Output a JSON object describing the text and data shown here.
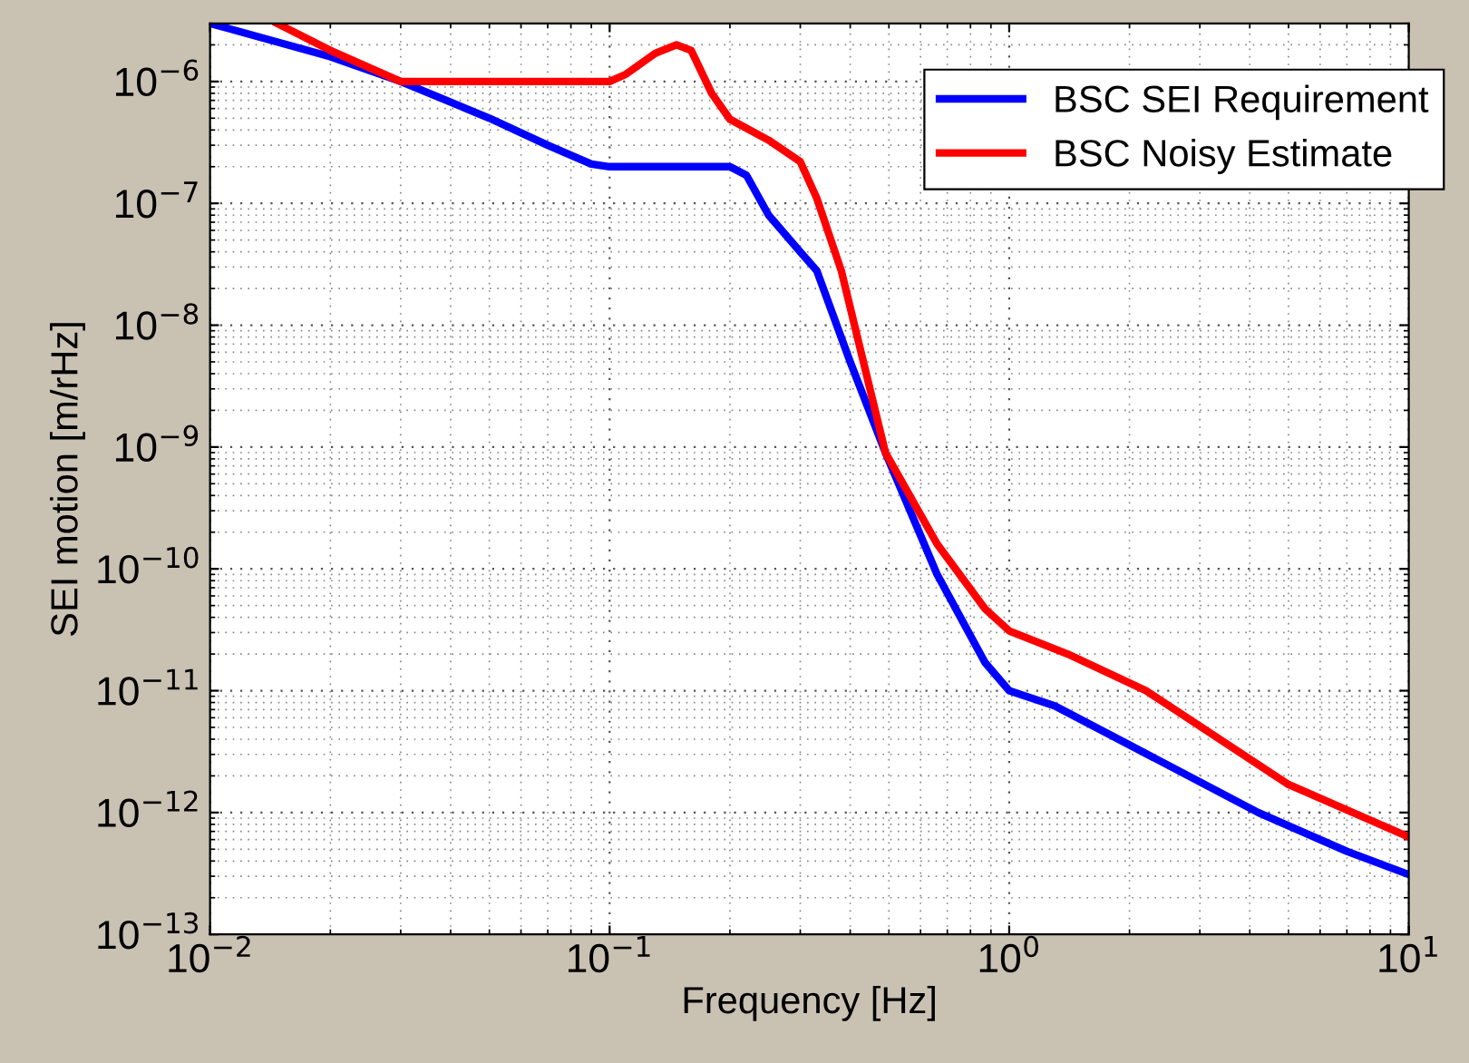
{
  "chart_data": {
    "type": "line",
    "xlabel": "Frequency [Hz]",
    "ylabel": "SEI motion [m/rHz]",
    "log": "xy",
    "grid": true,
    "legend": "top right",
    "line_style": "solid",
    "xlim": [
      0.01,
      10
    ],
    "ylim": [
      1e-13,
      3e-06
    ],
    "xticks": [
      {
        "value": 0.01,
        "label": "10$^{−2}$"
      },
      {
        "value": 0.1,
        "label": "10$^{−1}$"
      },
      {
        "value": 1,
        "label": "10$^{0}$"
      },
      {
        "value": 10,
        "label": "10$^{1}$"
      }
    ],
    "yticks": [
      {
        "value": 1e-13,
        "label": "10$^{−13}$"
      },
      {
        "value": 1e-12,
        "label": "10$^{−12}$"
      },
      {
        "value": 1e-11,
        "label": "10$^{−11}$"
      },
      {
        "value": 1e-10,
        "label": "10$^{−10}$"
      },
      {
        "value": 1e-09,
        "label": "10$^{−9}$"
      },
      {
        "value": 1e-08,
        "label": "10$^{−8}$"
      },
      {
        "value": 1e-07,
        "label": "10$^{−7}$"
      },
      {
        "value": 1e-06,
        "label": "10$^{−6}$"
      }
    ],
    "series": [
      {
        "name": "BSC SEI Requirement",
        "color": "#0000ff",
        "x": [
          0.01,
          0.02,
          0.03,
          0.05,
          0.07,
          0.09,
          0.1,
          0.15,
          0.2,
          0.22,
          0.25,
          0.3,
          0.33,
          0.4,
          0.49,
          0.66,
          0.87,
          1.0,
          1.3,
          2.1,
          4.2,
          7,
          10
        ],
        "values": [
          3e-06,
          1.6e-06,
          1e-06,
          5e-07,
          3e-07,
          2.1e-07,
          2e-07,
          2e-07,
          2e-07,
          1.7e-07,
          8e-08,
          4e-08,
          2.8e-08,
          5e-09,
          9e-10,
          9e-11,
          1.7e-11,
          1e-11,
          7.5e-12,
          3.3e-12,
          1e-12,
          4.8e-13,
          3.1e-13
        ]
      },
      {
        "name": "BSC Noisy Estimate",
        "color": "#ff0000",
        "x": [
          0.0147,
          0.02,
          0.03,
          0.05,
          0.1,
          0.11,
          0.13,
          0.147,
          0.16,
          0.18,
          0.2,
          0.25,
          0.3,
          0.33,
          0.38,
          0.49,
          0.66,
          0.87,
          1.0,
          1.4,
          2.2,
          5,
          10
        ],
        "values": [
          3e-06,
          1.8e-06,
          1e-06,
          1e-06,
          1e-06,
          1.15e-06,
          1.7e-06,
          2e-06,
          1.8e-06,
          8e-07,
          4.9e-07,
          3.3e-07,
          2.2e-07,
          1.1e-07,
          2.8e-08,
          9e-10,
          1.6e-10,
          4.7e-11,
          3.1e-11,
          2e-11,
          1e-11,
          1.7e-12,
          6.3e-13
        ]
      }
    ]
  }
}
